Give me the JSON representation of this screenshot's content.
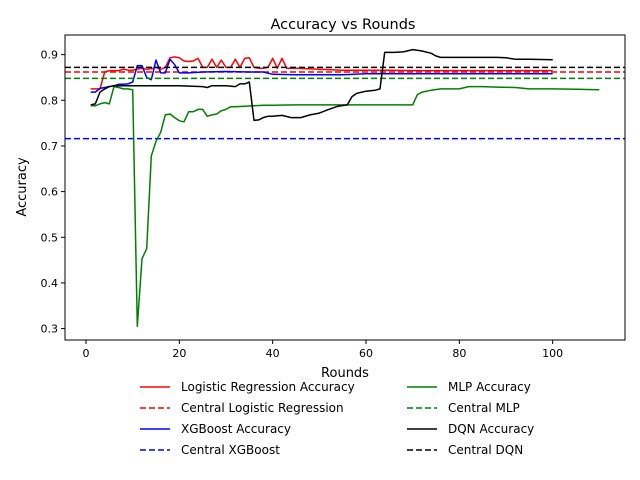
{
  "chart_data": {
    "type": "line",
    "title": "Accuracy vs Rounds",
    "xlabel": "Rounds",
    "ylabel": "Accuracy",
    "xlim": [
      -4.5,
      115.5
    ],
    "ylim": [
      0.275,
      0.943
    ],
    "xticks": [
      0,
      20,
      40,
      60,
      80,
      100
    ],
    "yticks": [
      0.3,
      0.4,
      0.5,
      0.6,
      0.7,
      0.8,
      0.9
    ],
    "grid": false,
    "legend_position": "below-center",
    "series": [
      {
        "name": "Logistic Regression Accuracy",
        "color": "#ff0000",
        "style": "solid",
        "x": [
          1,
          2,
          3,
          4,
          5,
          6,
          7,
          8,
          9,
          10,
          11,
          12,
          13,
          14,
          15,
          16,
          17,
          18,
          19,
          20,
          21,
          22,
          23,
          24,
          25,
          26,
          27,
          28,
          29,
          30,
          31,
          32,
          33,
          34,
          35,
          36,
          37,
          38,
          39,
          40,
          41,
          42,
          43,
          44,
          45,
          50,
          55,
          60,
          65,
          70,
          75,
          80,
          85,
          90,
          95,
          100
        ],
        "y": [
          0.825,
          0.825,
          0.825,
          0.862,
          0.865,
          0.865,
          0.865,
          0.868,
          0.866,
          0.866,
          0.868,
          0.87,
          0.868,
          0.869,
          0.872,
          0.868,
          0.872,
          0.893,
          0.895,
          0.893,
          0.886,
          0.885,
          0.886,
          0.892,
          0.872,
          0.872,
          0.89,
          0.872,
          0.888,
          0.872,
          0.872,
          0.89,
          0.872,
          0.892,
          0.893,
          0.872,
          0.87,
          0.87,
          0.872,
          0.892,
          0.87,
          0.892,
          0.87,
          0.87,
          0.87,
          0.868,
          0.866,
          0.866,
          0.866,
          0.865,
          0.865,
          0.865,
          0.865,
          0.865,
          0.865,
          0.865
        ]
      },
      {
        "name": "Central Logistic Regression",
        "color": "#ff0000",
        "style": "dashed",
        "constant": 0.862
      },
      {
        "name": "XGBoost Accuracy",
        "color": "#0000ff",
        "style": "solid",
        "x": [
          1,
          2,
          3,
          4,
          5,
          6,
          7,
          8,
          9,
          10,
          11,
          12,
          13,
          14,
          15,
          16,
          17,
          18,
          19,
          20,
          22,
          25,
          30,
          35,
          38,
          40,
          45,
          50,
          55,
          60,
          65,
          70,
          75,
          80,
          85,
          90,
          95,
          100
        ],
        "y": [
          0.818,
          0.818,
          0.826,
          0.828,
          0.83,
          0.832,
          0.835,
          0.835,
          0.836,
          0.84,
          0.876,
          0.876,
          0.85,
          0.845,
          0.888,
          0.86,
          0.86,
          0.89,
          0.878,
          0.86,
          0.86,
          0.862,
          0.863,
          0.862,
          0.862,
          0.857,
          0.856,
          0.856,
          0.856,
          0.858,
          0.858,
          0.858,
          0.858,
          0.858,
          0.858,
          0.858,
          0.858,
          0.858
        ]
      },
      {
        "name": "Central XGBoost",
        "color": "#0000ff",
        "style": "dashed",
        "constant": 0.716
      },
      {
        "name": "MLP Accuracy",
        "color": "#008000",
        "style": "solid",
        "x": [
          1,
          2,
          3,
          4,
          5,
          6,
          7,
          8,
          9,
          10,
          11,
          12,
          13,
          14,
          15,
          16,
          17,
          18,
          19,
          20,
          21,
          22,
          23,
          24,
          25,
          26,
          27,
          28,
          29,
          30,
          31,
          32,
          34,
          36,
          38,
          40,
          45,
          50,
          55,
          60,
          65,
          68,
          70,
          71,
          72,
          74,
          76,
          80,
          82,
          85,
          88,
          92,
          95,
          100,
          105,
          110
        ],
        "y": [
          0.788,
          0.788,
          0.792,
          0.795,
          0.792,
          0.83,
          0.828,
          0.825,
          0.825,
          0.823,
          0.305,
          0.453,
          0.475,
          0.678,
          0.71,
          0.73,
          0.768,
          0.77,
          0.762,
          0.755,
          0.753,
          0.775,
          0.775,
          0.78,
          0.78,
          0.765,
          0.768,
          0.77,
          0.777,
          0.78,
          0.786,
          0.786,
          0.787,
          0.788,
          0.789,
          0.789,
          0.79,
          0.79,
          0.79,
          0.79,
          0.79,
          0.79,
          0.79,
          0.812,
          0.818,
          0.822,
          0.825,
          0.825,
          0.83,
          0.83,
          0.829,
          0.828,
          0.825,
          0.825,
          0.824,
          0.823
        ]
      },
      {
        "name": "Central MLP",
        "color": "#008000",
        "style": "dashed",
        "constant": 0.848
      },
      {
        "name": "DQN Accuracy",
        "color": "#000000",
        "style": "solid",
        "x": [
          1,
          2,
          3,
          4,
          5,
          6,
          7,
          8,
          9,
          10,
          12,
          15,
          20,
          25,
          26,
          27,
          30,
          32,
          33,
          34,
          35,
          36,
          37,
          38,
          39,
          40,
          42,
          44,
          46,
          48,
          50,
          52,
          54,
          56,
          57,
          58,
          60,
          62,
          63,
          64,
          66,
          68,
          70,
          72,
          74,
          75,
          76,
          78,
          80,
          85,
          88,
          90,
          92,
          95,
          100
        ],
        "y": [
          0.79,
          0.792,
          0.818,
          0.825,
          0.83,
          0.832,
          0.832,
          0.832,
          0.832,
          0.832,
          0.832,
          0.832,
          0.832,
          0.83,
          0.828,
          0.832,
          0.832,
          0.83,
          0.836,
          0.836,
          0.84,
          0.756,
          0.757,
          0.762,
          0.765,
          0.765,
          0.767,
          0.762,
          0.762,
          0.768,
          0.772,
          0.78,
          0.787,
          0.79,
          0.808,
          0.815,
          0.82,
          0.822,
          0.825,
          0.905,
          0.905,
          0.906,
          0.911,
          0.908,
          0.903,
          0.897,
          0.894,
          0.894,
          0.894,
          0.894,
          0.894,
          0.893,
          0.89,
          0.89,
          0.889
        ]
      },
      {
        "name": "Central DQN",
        "color": "#000000",
        "style": "dashed",
        "constant": 0.872
      }
    ]
  }
}
